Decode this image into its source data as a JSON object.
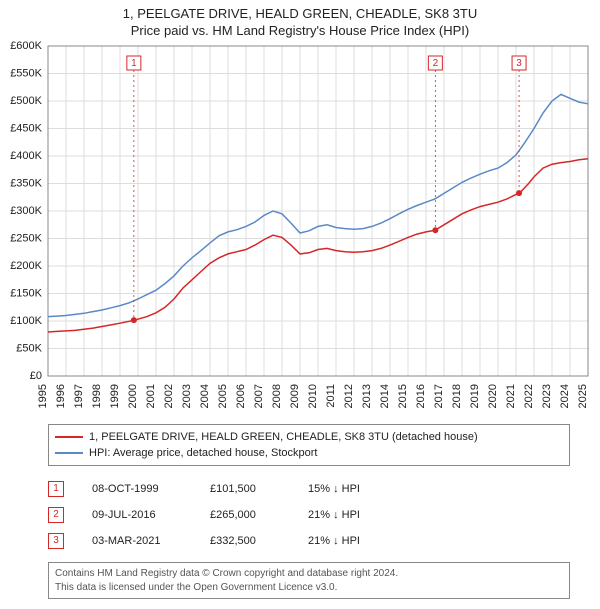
{
  "title_main": "1, PEELGATE DRIVE, HEALD GREEN, CHEADLE, SK8 3TU",
  "title_sub": "Price paid vs. HM Land Registry's House Price Index (HPI)",
  "chart": {
    "type": "line",
    "background_color": "#ffffff",
    "plot_border_color": "#888888",
    "grid_color": "#dddddd",
    "axis_label_fontsize": 11,
    "y": {
      "min": 0,
      "max": 600000,
      "tick_step": 50000,
      "tick_labels": [
        "£0",
        "£50K",
        "£100K",
        "£150K",
        "£200K",
        "£250K",
        "£300K",
        "£350K",
        "£400K",
        "£450K",
        "£500K",
        "£550K",
        "£600K"
      ]
    },
    "x": {
      "min": 1995,
      "max": 2025,
      "tick_step": 1,
      "tick_labels": [
        "1995",
        "1996",
        "1997",
        "1998",
        "1999",
        "2000",
        "2001",
        "2002",
        "2003",
        "2004",
        "2005",
        "2006",
        "2007",
        "2008",
        "2009",
        "2010",
        "2011",
        "2012",
        "2013",
        "2014",
        "2015",
        "2016",
        "2017",
        "2018",
        "2019",
        "2020",
        "2021",
        "2022",
        "2023",
        "2024",
        "2025"
      ]
    },
    "series": [
      {
        "name": "price_paid",
        "color": "#d62728",
        "line_width": 1.5,
        "points": [
          [
            1995.0,
            80000
          ],
          [
            1995.5,
            81000
          ],
          [
            1996.0,
            82000
          ],
          [
            1996.5,
            83000
          ],
          [
            1997.0,
            85000
          ],
          [
            1997.5,
            87000
          ],
          [
            1998.0,
            90000
          ],
          [
            1998.5,
            93000
          ],
          [
            1999.0,
            96000
          ],
          [
            1999.8,
            101500
          ],
          [
            2000.5,
            108000
          ],
          [
            2001.0,
            115000
          ],
          [
            2001.5,
            125000
          ],
          [
            2002.0,
            140000
          ],
          [
            2002.5,
            160000
          ],
          [
            2003.0,
            175000
          ],
          [
            2003.5,
            190000
          ],
          [
            2004.0,
            205000
          ],
          [
            2004.5,
            215000
          ],
          [
            2005.0,
            222000
          ],
          [
            2005.5,
            226000
          ],
          [
            2006.0,
            230000
          ],
          [
            2006.5,
            238000
          ],
          [
            2007.0,
            248000
          ],
          [
            2007.5,
            256000
          ],
          [
            2008.0,
            252000
          ],
          [
            2008.5,
            238000
          ],
          [
            2009.0,
            222000
          ],
          [
            2009.5,
            224000
          ],
          [
            2010.0,
            230000
          ],
          [
            2010.5,
            232000
          ],
          [
            2011.0,
            228000
          ],
          [
            2011.5,
            226000
          ],
          [
            2012.0,
            225000
          ],
          [
            2012.5,
            226000
          ],
          [
            2013.0,
            228000
          ],
          [
            2013.5,
            232000
          ],
          [
            2014.0,
            238000
          ],
          [
            2014.5,
            245000
          ],
          [
            2015.0,
            252000
          ],
          [
            2015.5,
            258000
          ],
          [
            2016.0,
            262000
          ],
          [
            2016.5,
            265000
          ],
          [
            2017.0,
            275000
          ],
          [
            2017.5,
            285000
          ],
          [
            2018.0,
            295000
          ],
          [
            2018.5,
            302000
          ],
          [
            2019.0,
            308000
          ],
          [
            2019.5,
            312000
          ],
          [
            2020.0,
            316000
          ],
          [
            2020.5,
            322000
          ],
          [
            2021.0,
            330000
          ],
          [
            2021.2,
            332500
          ],
          [
            2021.7,
            350000
          ],
          [
            2022.0,
            362000
          ],
          [
            2022.5,
            378000
          ],
          [
            2023.0,
            385000
          ],
          [
            2023.5,
            388000
          ],
          [
            2024.0,
            390000
          ],
          [
            2024.5,
            393000
          ],
          [
            2025.0,
            395000
          ]
        ]
      },
      {
        "name": "hpi",
        "color": "#5a8ac6",
        "line_width": 1.5,
        "points": [
          [
            1995.0,
            108000
          ],
          [
            1995.5,
            109000
          ],
          [
            1996.0,
            110000
          ],
          [
            1996.5,
            112000
          ],
          [
            1997.0,
            114000
          ],
          [
            1997.5,
            117000
          ],
          [
            1998.0,
            120000
          ],
          [
            1998.5,
            124000
          ],
          [
            1999.0,
            128000
          ],
          [
            1999.5,
            133000
          ],
          [
            2000.0,
            140000
          ],
          [
            2000.5,
            148000
          ],
          [
            2001.0,
            156000
          ],
          [
            2001.5,
            168000
          ],
          [
            2002.0,
            182000
          ],
          [
            2002.5,
            200000
          ],
          [
            2003.0,
            215000
          ],
          [
            2003.5,
            228000
          ],
          [
            2004.0,
            242000
          ],
          [
            2004.5,
            255000
          ],
          [
            2005.0,
            262000
          ],
          [
            2005.5,
            266000
          ],
          [
            2006.0,
            272000
          ],
          [
            2006.5,
            280000
          ],
          [
            2007.0,
            292000
          ],
          [
            2007.5,
            300000
          ],
          [
            2008.0,
            295000
          ],
          [
            2008.5,
            278000
          ],
          [
            2009.0,
            260000
          ],
          [
            2009.5,
            264000
          ],
          [
            2010.0,
            272000
          ],
          [
            2010.5,
            275000
          ],
          [
            2011.0,
            270000
          ],
          [
            2011.5,
            268000
          ],
          [
            2012.0,
            267000
          ],
          [
            2012.5,
            268000
          ],
          [
            2013.0,
            272000
          ],
          [
            2013.5,
            278000
          ],
          [
            2014.0,
            286000
          ],
          [
            2014.5,
            295000
          ],
          [
            2015.0,
            303000
          ],
          [
            2015.5,
            310000
          ],
          [
            2016.0,
            316000
          ],
          [
            2016.5,
            322000
          ],
          [
            2017.0,
            332000
          ],
          [
            2017.5,
            342000
          ],
          [
            2018.0,
            352000
          ],
          [
            2018.5,
            360000
          ],
          [
            2019.0,
            367000
          ],
          [
            2019.5,
            373000
          ],
          [
            2020.0,
            378000
          ],
          [
            2020.5,
            388000
          ],
          [
            2021.0,
            402000
          ],
          [
            2021.5,
            425000
          ],
          [
            2022.0,
            450000
          ],
          [
            2022.5,
            478000
          ],
          [
            2023.0,
            500000
          ],
          [
            2023.5,
            512000
          ],
          [
            2024.0,
            505000
          ],
          [
            2024.5,
            498000
          ],
          [
            2025.0,
            495000
          ]
        ]
      }
    ],
    "sale_markers": [
      {
        "n": "1",
        "x": 1999.77,
        "y": 101500
      },
      {
        "n": "2",
        "x": 2016.52,
        "y": 265000
      },
      {
        "n": "3",
        "x": 2021.17,
        "y": 332500
      }
    ],
    "marker_top_y_offset": 10,
    "marker_box_size": 14
  },
  "legend": {
    "items": [
      {
        "color": "#d62728",
        "label": "1, PEELGATE DRIVE, HEALD GREEN, CHEADLE, SK8 3TU (detached house)"
      },
      {
        "color": "#5a8ac6",
        "label": "HPI: Average price, detached house, Stockport"
      }
    ]
  },
  "sales": [
    {
      "n": "1",
      "date": "08-OCT-1999",
      "price": "£101,500",
      "delta": "15% ↓ HPI"
    },
    {
      "n": "2",
      "date": "09-JUL-2016",
      "price": "£265,000",
      "delta": "21% ↓ HPI"
    },
    {
      "n": "3",
      "date": "03-MAR-2021",
      "price": "£332,500",
      "delta": "21% ↓ HPI"
    }
  ],
  "footer_line1": "Contains HM Land Registry data © Crown copyright and database right 2024.",
  "footer_line2": "This data is licensed under the Open Government Licence v3.0."
}
